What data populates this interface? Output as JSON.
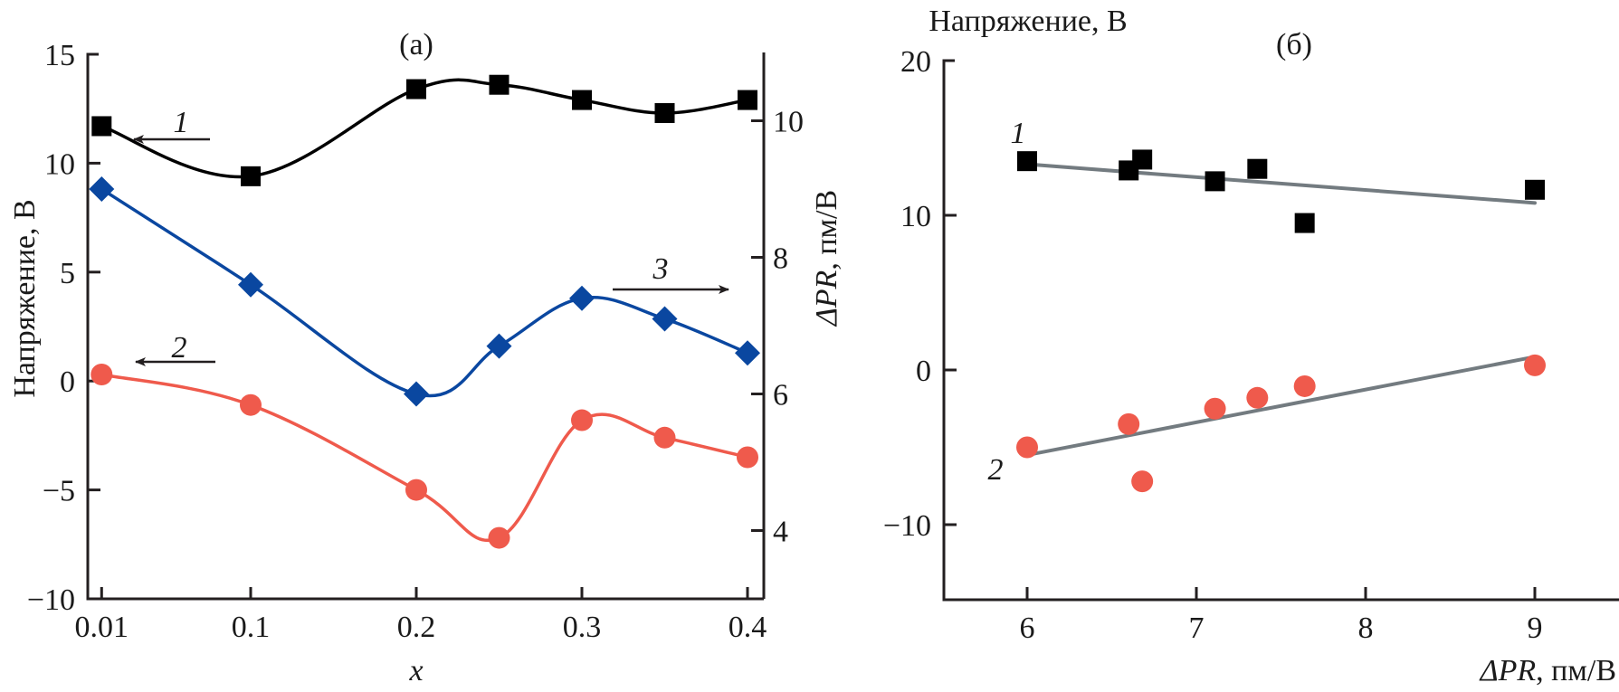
{
  "chart_data": [
    {
      "panel": "a",
      "type": "line",
      "panel_label": "(а)",
      "xlabel": "x",
      "ylabel_left": "Напряжение, В",
      "ylabel_right_prefix": "ΔPR",
      "ylabel_right_suffix": ", пм/В",
      "xlim": [
        0,
        0.41
      ],
      "ylim_left": [
        -10,
        15
      ],
      "ylim_right": [
        3,
        11
      ],
      "x_ticks": [
        0.01,
        0.1,
        0.2,
        0.3,
        0.4
      ],
      "x_tick_labels": [
        "0.01",
        "0.1",
        "0.2",
        "0.3",
        "0.4"
      ],
      "y_left_ticks": [
        -10,
        -5,
        0,
        5,
        10,
        15
      ],
      "y_left_tick_labels": [
        "−10",
        "−5",
        "0",
        "5",
        "10",
        "15"
      ],
      "y_right_ticks": [
        4,
        6,
        8,
        10
      ],
      "y_right_tick_labels": [
        "4",
        "6",
        "8",
        "10"
      ],
      "grid": false,
      "x": [
        0.01,
        0.1,
        0.2,
        0.25,
        0.3,
        0.35,
        0.4
      ],
      "series": [
        {
          "name": "1",
          "axis": "left",
          "marker": "square",
          "color": "#000000",
          "values": [
            11.7,
            9.4,
            13.4,
            13.6,
            12.9,
            12.3,
            12.9
          ]
        },
        {
          "name": "2",
          "axis": "left",
          "marker": "circle",
          "color": "#ef5a4c",
          "values": [
            0.3,
            -1.1,
            -5.0,
            -7.2,
            -1.8,
            -2.6,
            -3.5
          ]
        },
        {
          "name": "3",
          "axis": "right",
          "marker": "diamond",
          "color": "#0a47a0",
          "values": [
            9.0,
            7.6,
            6.0,
            6.7,
            7.4,
            7.1,
            6.6
          ]
        }
      ],
      "annotations": [
        {
          "label": "1",
          "arrow": "left"
        },
        {
          "label": "2",
          "arrow": "left"
        },
        {
          "label": "3",
          "arrow": "right"
        }
      ]
    },
    {
      "panel": "б",
      "type": "scatter",
      "panel_label": "(б)",
      "xlabel_prefix": "ΔPR",
      "xlabel_suffix": ", пм/В",
      "ylabel": "Напряжение, В",
      "xlim": [
        5.5,
        9.5
      ],
      "ylim": [
        -15,
        20
      ],
      "x_ticks": [
        6,
        7,
        8,
        9
      ],
      "x_tick_labels": [
        "6",
        "7",
        "8",
        "9"
      ],
      "y_ticks": [
        -10,
        0,
        10,
        20
      ],
      "y_tick_labels": [
        "−10",
        "0",
        "10",
        "20"
      ],
      "grid": false,
      "series": [
        {
          "name": "1",
          "marker": "square",
          "color": "#000000",
          "points": [
            [
              6.0,
              13.5
            ],
            [
              6.6,
              12.9
            ],
            [
              6.68,
              13.6
            ],
            [
              7.11,
              12.2
            ],
            [
              7.36,
              13.0
            ],
            [
              7.64,
              9.5
            ],
            [
              9.0,
              11.65
            ]
          ],
          "fit": [
            [
              6.0,
              13.3
            ],
            [
              9.0,
              10.8
            ]
          ],
          "fit_color": "#737b80"
        },
        {
          "name": "2",
          "marker": "circle",
          "color": "#ef5a4c",
          "points": [
            [
              6.0,
              -5.0
            ],
            [
              6.6,
              -3.5
            ],
            [
              6.68,
              -7.2
            ],
            [
              7.11,
              -2.5
            ],
            [
              7.36,
              -1.8
            ],
            [
              7.64,
              -1.05
            ],
            [
              9.0,
              0.3
            ]
          ],
          "fit": [
            [
              6.0,
              -5.5
            ],
            [
              9.0,
              0.85
            ]
          ],
          "fit_color": "#737b80"
        }
      ]
    }
  ]
}
